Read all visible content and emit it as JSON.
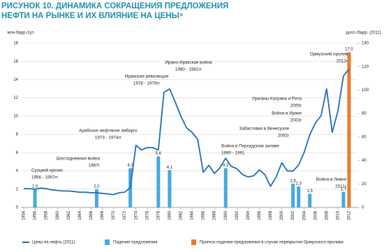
{
  "chart_data": {
    "type": "combo",
    "title": [
      "РИСУНОК 10. ДИНАМИКА СОКРАЩЕНИЯ ПРЕДЛОЖЕНИЯ",
      "НЕФТИ НА РЫНКЕ И ИХ ВЛИЯНИЕ НА ЦЕНЫ⁹"
    ],
    "y_label": "млн.барр./сут.",
    "y2_label": "долл./барр. (2011)",
    "xlim": [
      1953.5,
      2013.5
    ],
    "xticks": [
      1954,
      1956,
      1958,
      1960,
      1962,
      1964,
      1966,
      1968,
      1970,
      1972,
      1974,
      1976,
      1978,
      1980,
      1982,
      1984,
      1986,
      1988,
      1990,
      1992,
      1994,
      1996,
      1998,
      2000,
      2002,
      2004,
      2006,
      2008,
      2010,
      2012
    ],
    "ylim": [
      0,
      18
    ],
    "yticks": [
      0,
      2,
      4,
      6,
      8,
      10,
      12,
      14,
      16,
      18
    ],
    "y2lim": [
      0,
      140
    ],
    "y2ticks": [
      0,
      20,
      40,
      60,
      80,
      100,
      120,
      140
    ],
    "grid": true,
    "series": [
      {
        "name": "Цены на нефть (2011)",
        "type": "line",
        "axis": "y2",
        "color": "#1f6db5",
        "x": [
          1954,
          1955,
          1956,
          1957,
          1958,
          1959,
          1960,
          1961,
          1962,
          1963,
          1964,
          1965,
          1966,
          1967,
          1968,
          1969,
          1970,
          1971,
          1972,
          1973,
          1974,
          1975,
          1976,
          1977,
          1978,
          1979,
          1980,
          1981,
          1982,
          1983,
          1984,
          1985,
          1986,
          1987,
          1988,
          1989,
          1990,
          1991,
          1992,
          1993,
          1994,
          1995,
          1996,
          1997,
          1998,
          1999,
          2000,
          2001,
          2002,
          2003,
          2004,
          2005,
          2006,
          2007,
          2008,
          2009,
          2010,
          2011,
          2012
        ],
        "values": [
          16,
          16,
          15.5,
          16.5,
          16,
          15,
          14.5,
          14,
          14,
          13.5,
          13,
          13,
          12.5,
          12.5,
          12,
          11.5,
          11,
          12.5,
          13,
          17,
          53,
          49,
          51,
          51,
          49,
          98,
          101,
          90,
          78,
          68,
          64,
          58,
          30,
          36,
          29,
          34,
          42,
          35,
          33,
          28,
          26,
          27,
          32,
          28,
          18,
          26,
          38,
          31,
          31,
          36,
          47,
          62,
          72,
          78,
          101,
          64,
          82,
          112,
          118
        ]
      },
      {
        "name": "Падение предложения",
        "type": "bar",
        "color": "#45a9e0",
        "x": [
          1956,
          1967,
          1973,
          1978,
          1980,
          1990,
          2002,
          2003,
          2005,
          2011
        ],
        "values": [
          2.0,
          2.0,
          4.3,
          5.6,
          4.1,
          4.3,
          2.6,
          2.3,
          1.5,
          1.7
        ],
        "value_labels": [
          "2,0",
          "2,0",
          "4,3",
          "5,6",
          "4,1",
          "4,3",
          "2,6",
          "2,3",
          "1,5",
          "1,7"
        ]
      },
      {
        "name": "Прогноз падения предложения в случае перекрытия Ормузского пролива",
        "type": "bar",
        "color": "#ec7a2c",
        "x": [
          2012
        ],
        "values": [
          17.0
        ],
        "value_labels": [
          "17,0"
        ]
      }
    ],
    "annotations": [
      {
        "title": "Суэцкий кризис",
        "period": "1956 - 1957гг"
      },
      {
        "title": "Шестидневная война",
        "period": "1967г"
      },
      {
        "title": "Арабское нефтяное эмбарго",
        "period": "1973 - 1974гг"
      },
      {
        "title": "Иранская революция",
        "period": "1978 - 1979гг"
      },
      {
        "title": "Ирано-Иракская война",
        "period": "1980 - 1981гг"
      },
      {
        "title": "Война в Персидском заливе",
        "period": "1990 - 1991"
      },
      {
        "title": "Ураганы Катрина и Рита",
        "period": "2005г"
      },
      {
        "title": "Война в Ираке",
        "period": "2003г"
      },
      {
        "title": "Забастовки в Венесуэле",
        "period": "2002г"
      },
      {
        "title": "Война в Ливии",
        "period": "2011г"
      },
      {
        "title": "Ормузский пролив",
        "period": "2012г"
      }
    ]
  }
}
